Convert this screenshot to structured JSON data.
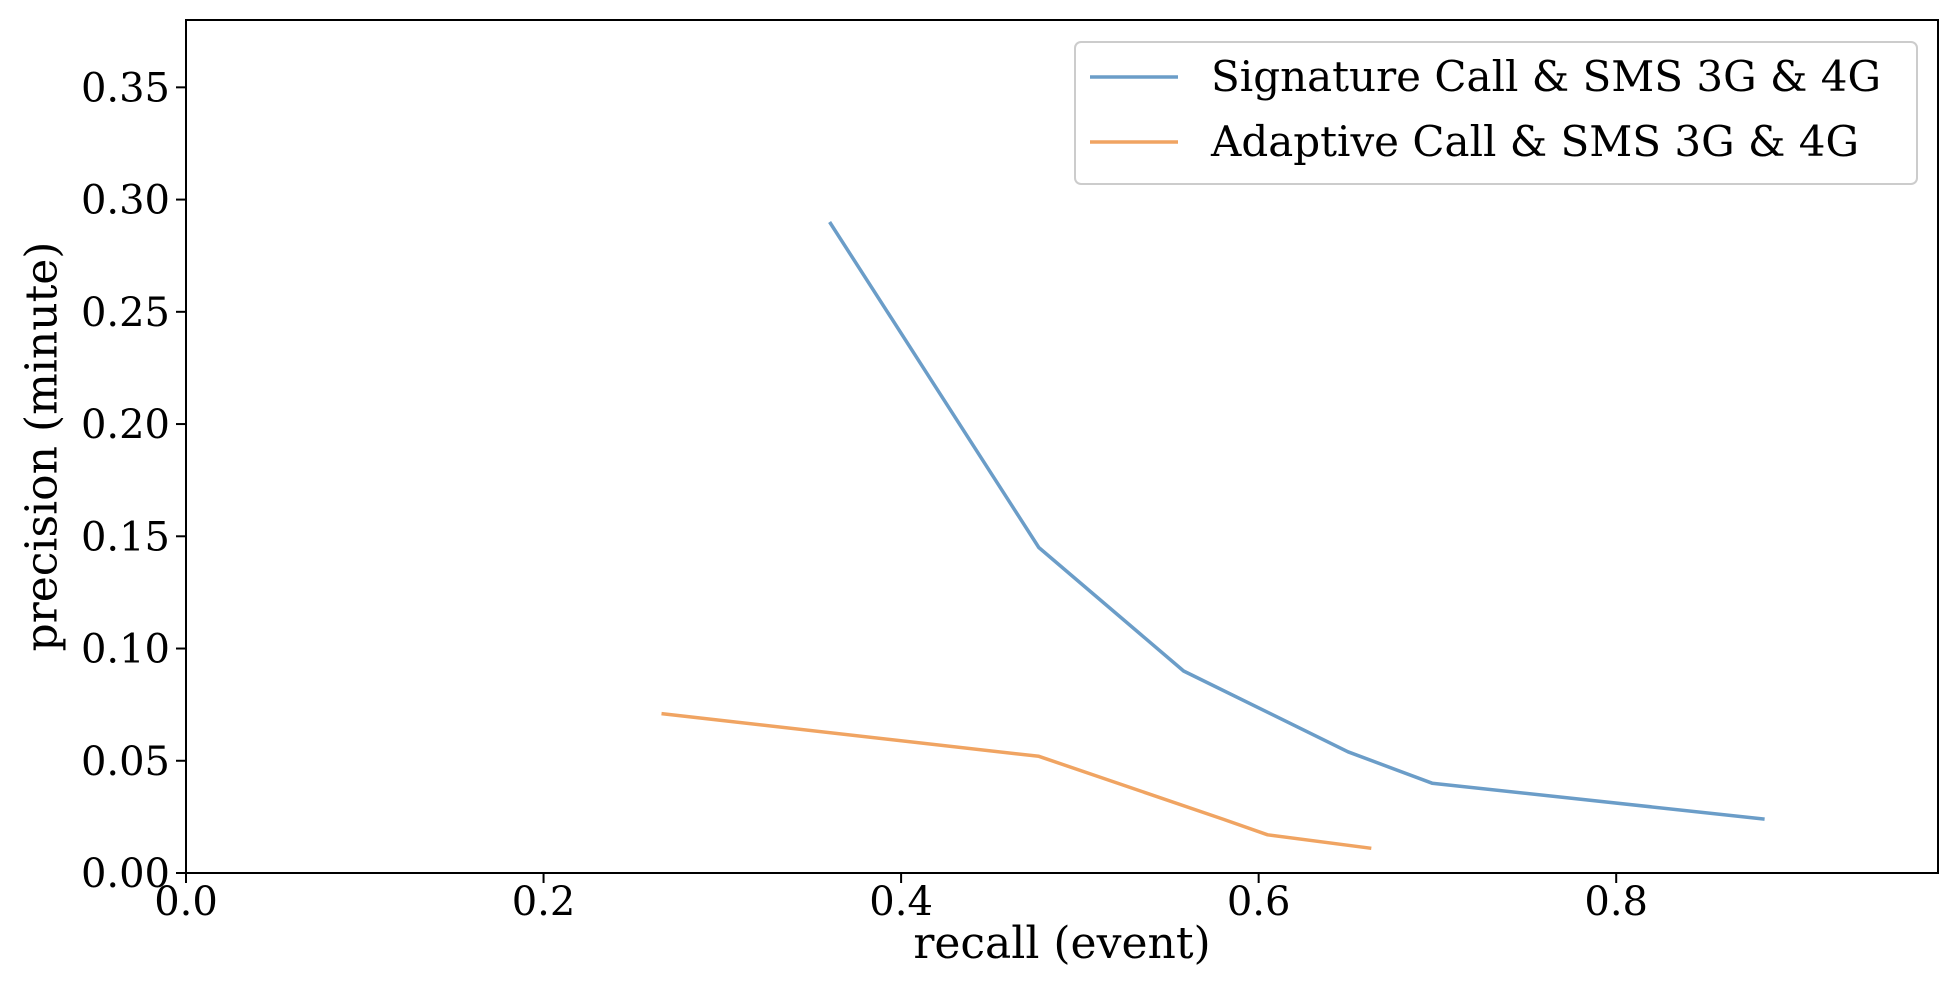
{
  "chart_data": {
    "type": "line",
    "title": "",
    "xlabel": "recall (event)",
    "ylabel": "precision (minute)",
    "xlim": [
      0.0,
      0.98
    ],
    "ylim": [
      0.0,
      0.38
    ],
    "xticks": [
      0.0,
      0.2,
      0.4,
      0.6,
      0.8
    ],
    "xtick_labels": [
      "0.0",
      "0.2",
      "0.4",
      "0.6",
      "0.8"
    ],
    "yticks": [
      0.0,
      0.05,
      0.1,
      0.15,
      0.2,
      0.25,
      0.3,
      0.35
    ],
    "ytick_labels": [
      "0.00",
      "0.05",
      "0.10",
      "0.15",
      "0.20",
      "0.25",
      "0.30",
      "0.35"
    ],
    "grid": false,
    "legend_position": "top-right",
    "series": [
      {
        "name": "Signature Call & SMS 3G & 4G",
        "color": "#6b9dc8",
        "x": [
          0.36,
          0.477,
          0.558,
          0.65,
          0.697,
          0.883
        ],
        "y": [
          0.29,
          0.145,
          0.09,
          0.054,
          0.04,
          0.024
        ]
      },
      {
        "name": "Adaptive Call & SMS 3G & 4G",
        "color": "#f0a462",
        "x": [
          0.266,
          0.477,
          0.58,
          0.605,
          0.663
        ],
        "y": [
          0.071,
          0.052,
          0.024,
          0.017,
          0.011
        ]
      }
    ]
  }
}
